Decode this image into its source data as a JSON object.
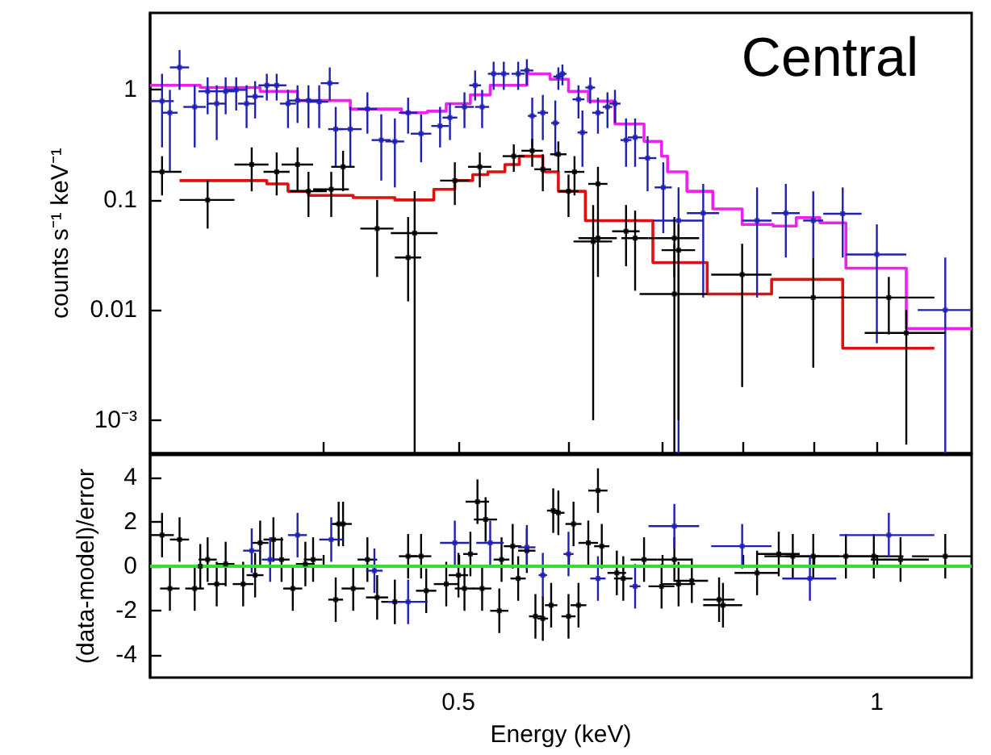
{
  "chart_data": [
    {
      "type": "scatter",
      "title": "Central",
      "ylabel": "counts s⁻¹ keV⁻¹",
      "log": "xy",
      "marker": "square",
      "tick_labels": "y",
      "xlim": [
        0.3,
        1.17
      ],
      "xticks": [
        {
          "value": 0.4,
          "label": null
        },
        {
          "value": 0.5,
          "label": null
        },
        {
          "value": 0.6,
          "label": null
        },
        {
          "value": 0.7,
          "label": null
        },
        {
          "value": 0.8,
          "label": null
        },
        {
          "value": 0.9,
          "label": null
        },
        {
          "value": 1,
          "label": null
        }
      ],
      "ylim": [
        0.0005,
        5
      ],
      "yticks": [
        {
          "value": 0.001,
          "label": "10⁻³"
        },
        0.01,
        0.1,
        1
      ],
      "series": [
        {
          "color": "#2020b0",
          "x": [
            0.306,
            0.315,
            0.31,
            0.323,
            0.33,
            0.335,
            0.34,
            0.346,
            0.352,
            0.357,
            0.364,
            0.37,
            0.377,
            0.383,
            0.39,
            0.397,
            0.404,
            0.408,
            0.418,
            0.43,
            0.44,
            0.45,
            0.46,
            0.47,
            0.485,
            0.493,
            0.505,
            0.514,
            0.52,
            0.53,
            0.539,
            0.552,
            0.56,
            0.565,
            0.575,
            0.59,
            0.594,
            0.587,
            0.61,
            0.614,
            0.622,
            0.63,
            0.64,
            0.648,
            0.66,
            0.67,
            0.684,
            0.702,
            0.72,
            0.75,
            0.82,
            0.86,
            0.9,
            0.945,
            1.0,
            1.12
          ],
          "values": [
            0.79,
            1.6,
            0.62,
            0.7,
            0.97,
            0.75,
            0.97,
            1.0,
            0.75,
            0.87,
            1.1,
            1.1,
            0.75,
            0.8,
            0.8,
            0.78,
            1.15,
            0.44,
            0.44,
            0.67,
            0.35,
            0.34,
            0.62,
            0.4,
            0.47,
            0.56,
            0.7,
            1.1,
            0.7,
            1.4,
            1.4,
            1.4,
            1.5,
            0.58,
            0.62,
            1.32,
            1.4,
            0.5,
            0.82,
            0.41,
            1.05,
            0.62,
            0.7,
            0.75,
            0.35,
            0.37,
            0.24,
            0.13,
            0.065,
            0.076,
            0.065,
            0.076,
            0.065,
            0.075,
            0.032,
            0.01
          ],
          "xerrors": [
            0.006,
            0.005,
            0.004,
            0.006,
            0.005,
            0.005,
            0.005,
            0.006,
            0.005,
            0.005,
            0.005,
            0.006,
            0.005,
            0.006,
            0.007,
            0.006,
            0.006,
            0.005,
            0.008,
            0.007,
            0.007,
            0.007,
            0.007,
            0.008,
            0.007,
            0.006,
            0.008,
            0.005,
            0.006,
            0.005,
            0.005,
            0.006,
            0.006,
            0.004,
            0.005,
            0.005,
            0.004,
            0.004,
            0.006,
            0.005,
            0.005,
            0.006,
            0.005,
            0.006,
            0.006,
            0.008,
            0.01,
            0.01,
            0.03,
            0.02,
            0.02,
            0.02,
            0.015,
            0.03,
            0.05,
            0.05
          ],
          "errors": [
            [
              0.3,
              1.4
            ],
            [
              1.0,
              2.3
            ],
            [
              0.18,
              1.0
            ],
            [
              0.3,
              1.1
            ],
            [
              0.6,
              1.3
            ],
            [
              0.35,
              1.1
            ],
            [
              0.6,
              1.3
            ],
            [
              0.65,
              1.3
            ],
            [
              0.45,
              1.1
            ],
            [
              0.55,
              1.2
            ],
            [
              0.8,
              1.4
            ],
            [
              0.8,
              1.4
            ],
            [
              0.45,
              1.0
            ],
            [
              0.5,
              1.1
            ],
            [
              0.45,
              1.1
            ],
            [
              0.45,
              1.1
            ],
            [
              0.8,
              1.6
            ],
            [
              0.2,
              0.7
            ],
            [
              0.2,
              0.7
            ],
            [
              0.4,
              0.95
            ],
            [
              0.15,
              0.6
            ],
            [
              0.13,
              0.55
            ],
            [
              0.4,
              0.85
            ],
            [
              0.22,
              0.6
            ],
            [
              0.3,
              0.7
            ],
            [
              0.35,
              0.75
            ],
            [
              0.45,
              0.95
            ],
            [
              0.8,
              1.5
            ],
            [
              0.45,
              1.0
            ],
            [
              1.0,
              1.8
            ],
            [
              1.0,
              1.8
            ],
            [
              1.0,
              1.8
            ],
            [
              1.1,
              1.9
            ],
            [
              0.3,
              0.85
            ],
            [
              0.35,
              0.9
            ],
            [
              1.0,
              1.6
            ],
            [
              1.1,
              1.7
            ],
            [
              0.25,
              0.8
            ],
            [
              0.55,
              1.1
            ],
            [
              0.2,
              0.65
            ],
            [
              0.75,
              1.3
            ],
            [
              0.4,
              0.85
            ],
            [
              0.45,
              0.95
            ],
            [
              0.5,
              1.0
            ],
            [
              0.2,
              0.55
            ],
            [
              0.2,
              0.55
            ],
            [
              0.12,
              0.38
            ],
            [
              0.05,
              0.22
            ],
            [
              0.0005,
              0.13
            ],
            [
              0.013,
              0.14
            ],
            [
              0.013,
              0.13
            ],
            [
              0.03,
              0.14
            ],
            [
              0.03,
              0.12
            ],
            [
              0.03,
              0.13
            ],
            [
              0.005,
              0.06
            ],
            [
              0.0005,
              0.03
            ]
          ]
        },
        {
          "color": "#000000",
          "x": [
            0.306,
            0.33,
            0.355,
            0.37,
            0.383,
            0.39,
            0.405,
            0.413,
            0.437,
            0.465,
            0.46,
            0.497,
            0.518,
            0.548,
            0.565,
            0.575,
            0.59,
            0.6,
            0.606,
            0.63,
            0.63,
            0.625,
            0.66,
            0.67,
            0.715,
            0.72,
            0.715,
            0.8,
            0.9,
            1.02,
            1.05
          ],
          "values": [
            0.18,
            0.1,
            0.21,
            0.18,
            0.21,
            0.12,
            0.125,
            0.2,
            0.055,
            0.05,
            0.03,
            0.15,
            0.2,
            0.25,
            0.28,
            0.19,
            0.26,
            0.12,
            0.18,
            0.14,
            0.045,
            0.042,
            0.052,
            0.045,
            0.045,
            0.035,
            0.014,
            0.021,
            0.013,
            0.013,
            0.0062
          ],
          "xerrors": [
            0.01,
            0.015,
            0.01,
            0.008,
            0.01,
            0.012,
            0.012,
            0.008,
            0.012,
            0.018,
            0.01,
            0.012,
            0.01,
            0.01,
            0.01,
            0.008,
            0.008,
            0.01,
            0.01,
            0.01,
            0.02,
            0.02,
            0.015,
            0.015,
            0.03,
            0.02,
            0.04,
            0.04,
            0.05,
            0.08,
            0.07
          ],
          "errors": [
            [
              0.11,
              0.25
            ],
            [
              0.055,
              0.15
            ],
            [
              0.12,
              0.3
            ],
            [
              0.11,
              0.27
            ],
            [
              0.12,
              0.3
            ],
            [
              0.07,
              0.18
            ],
            [
              0.07,
              0.18
            ],
            [
              0.12,
              0.28
            ],
            [
              0.02,
              0.1
            ],
            [
              0.0005,
              0.12
            ],
            [
              0.012,
              0.07
            ],
            [
              0.09,
              0.22
            ],
            [
              0.13,
              0.27
            ],
            [
              0.18,
              0.32
            ],
            [
              0.2,
              0.36
            ],
            [
              0.12,
              0.26
            ],
            [
              0.18,
              0.34
            ],
            [
              0.07,
              0.17
            ],
            [
              0.11,
              0.25
            ],
            [
              0.08,
              0.2
            ],
            [
              0.02,
              0.08
            ],
            [
              0.001,
              0.09
            ],
            [
              0.025,
              0.09
            ],
            [
              0.015,
              0.08
            ],
            [
              0.02,
              0.07
            ],
            [
              0.001,
              0.06
            ],
            [
              0.0005,
              0.04
            ],
            [
              0.002,
              0.04
            ],
            [
              0.003,
              0.03
            ],
            [
              0.006,
              0.02
            ],
            [
              0.0006,
              0.01
            ]
          ]
        },
        {
          "type": "step",
          "marker": "none",
          "color": "#dd1111",
          "x": [
            0.315,
            0.364,
            0.377,
            0.39,
            0.42,
            0.45,
            0.48,
            0.497,
            0.512,
            0.525,
            0.54,
            0.553,
            0.575,
            0.59,
            0.617,
            0.69,
            0.755,
            0.84,
            0.945,
            1.1
          ],
          "values": [
            0.15,
            0.14,
            0.12,
            0.11,
            0.105,
            0.1,
            0.125,
            0.15,
            0.17,
            0.18,
            0.21,
            0.25,
            0.18,
            0.12,
            0.065,
            0.027,
            0.014,
            0.019,
            0.0045,
            0.0045
          ]
        },
        {
          "type": "step",
          "marker": "none",
          "color": "#ee22ee",
          "x": [
            0.3,
            0.326,
            0.36,
            0.383,
            0.418,
            0.455,
            0.475,
            0.49,
            0.51,
            0.527,
            0.56,
            0.582,
            0.6,
            0.62,
            0.648,
            0.68,
            0.7,
            0.707,
            0.73,
            0.762,
            0.8,
            0.842,
            0.875,
            0.91,
            0.95,
            1.05,
            1.17
          ],
          "values": [
            1.1,
            1.05,
            0.97,
            0.8,
            0.67,
            0.62,
            0.64,
            0.75,
            0.9,
            1.1,
            1.4,
            1.25,
            0.97,
            0.79,
            0.49,
            0.34,
            0.25,
            0.18,
            0.12,
            0.083,
            0.06,
            0.058,
            0.069,
            0.062,
            0.024,
            0.0068,
            0.0068
          ]
        }
      ]
    },
    {
      "type": "scatter",
      "xlabel": "Energy (keV)",
      "ylabel": "(data-model)/error",
      "log": "x",
      "marker": "square",
      "xlim": [
        0.3,
        1.17
      ],
      "xticks": [
        {
          "value": 0.4,
          "label": null
        },
        0.5,
        {
          "value": 0.6,
          "label": null
        },
        {
          "value": 0.7,
          "label": null
        },
        {
          "value": 0.8,
          "label": null
        },
        {
          "value": 0.9,
          "label": null
        },
        1
      ],
      "ylim": [
        -5,
        5
      ],
      "yticks": [
        -4,
        -2,
        0,
        2,
        4
      ],
      "ref_lines": [
        {
          "axis": "y",
          "value": 0,
          "color": "#33dd33"
        }
      ],
      "series": [
        {
          "color": "#000000",
          "x": [
            0.306,
            0.31,
            0.315,
            0.323,
            0.326,
            0.33,
            0.335,
            0.34,
            0.35,
            0.357,
            0.36,
            0.368,
            0.373,
            0.38,
            0.388,
            0.393,
            0.408,
            0.41,
            0.413,
            0.42,
            0.43,
            0.437,
            0.45,
            0.46,
            0.47,
            0.474,
            0.49,
            0.5,
            0.505,
            0.516,
            0.523,
            0.51,
            0.52,
            0.535,
            0.537,
            0.547,
            0.552,
            0.56,
            0.568,
            0.575,
            0.583,
            0.585,
            0.59,
            0.6,
            0.605,
            0.61,
            0.62,
            0.63,
            0.634,
            0.65,
            0.657,
            0.68,
            0.7,
            0.715,
            0.72,
            0.736,
            0.77,
            0.775,
            0.82,
            0.85,
            0.87,
            0.9,
            0.95,
            0.995,
            1.04,
            1.12
          ],
          "values": [
            1.4,
            -1.0,
            1.2,
            -1.0,
            0,
            0.3,
            -0.8,
            0.1,
            -0.8,
            -0.4,
            1.05,
            1.2,
            0.3,
            -1.0,
            0.1,
            0.3,
            -1.5,
            1.9,
            1.9,
            -1.0,
            0.3,
            -1.4,
            -1.6,
            0.45,
            0.45,
            -1.1,
            -0.8,
            -0.4,
            -1.0,
            2.9,
            2.1,
            0.55,
            -1.0,
            -2.0,
            0.3,
            0.9,
            -0.55,
            0.7,
            -2.25,
            -2.35,
            -1.75,
            2.5,
            2.4,
            -2.25,
            1.9,
            -1.75,
            1.05,
            3.4,
            0.9,
            -0.3,
            -0.55,
            0.3,
            -0.9,
            0.3,
            -0.8,
            -0.65,
            -1.5,
            -1.75,
            -0.3,
            0.55,
            0.45,
            0.45,
            0.45,
            0.45,
            0.3,
            0.45
          ],
          "xerrors": [
            0.006,
            0.005,
            0.005,
            0.005,
            0.005,
            0.005,
            0.005,
            0.005,
            0.006,
            0.005,
            0.005,
            0.006,
            0.005,
            0.006,
            0.006,
            0.006,
            0.005,
            0.005,
            0.006,
            0.008,
            0.007,
            0.008,
            0.01,
            0.007,
            0.008,
            0.008,
            0.01,
            0.008,
            0.008,
            0.01,
            0.01,
            0.006,
            0.008,
            0.008,
            0.007,
            0.008,
            0.007,
            0.008,
            0.006,
            0.005,
            0.006,
            0.006,
            0.006,
            0.007,
            0.008,
            0.008,
            0.01,
            0.01,
            0.008,
            0.01,
            0.01,
            0.015,
            0.015,
            0.02,
            0.02,
            0.02,
            0.02,
            0.025,
            0.03,
            0.03,
            0.04,
            0.04,
            0.05,
            0.05,
            0.05,
            0.06
          ],
          "errors": [
            1,
            1,
            1,
            1,
            1,
            1,
            1,
            1,
            1,
            1,
            1,
            1,
            1,
            1,
            1,
            1,
            1,
            1,
            1,
            1,
            1,
            1,
            1,
            1,
            1,
            1,
            1,
            1,
            1,
            1,
            1,
            1,
            1,
            1,
            1,
            1,
            1,
            1,
            1,
            1,
            1,
            1,
            1,
            1,
            1,
            1,
            1,
            1,
            1,
            1,
            1,
            1,
            1,
            1,
            1,
            1,
            1,
            1,
            1,
            1,
            1,
            1,
            1,
            1,
            1,
            1
          ]
        },
        {
          "color": "#2020b0",
          "x": [
            0.355,
            0.366,
            0.383,
            0.405,
            0.435,
            0.46,
            0.497,
            0.527,
            0.56,
            0.575,
            0.6,
            0.63,
            0.67,
            0.715,
            0.8,
            0.895,
            1.02
          ],
          "values": [
            0.7,
            0.3,
            1.4,
            1.2,
            -0.2,
            -1.6,
            1.05,
            1.05,
            0.85,
            -0.4,
            0.55,
            -0.55,
            -0.9,
            1.8,
            0.9,
            -0.55,
            1.4
          ],
          "xerrors": [
            0.005,
            0.005,
            0.006,
            0.008,
            0.006,
            0.015,
            0.012,
            0.012,
            0.008,
            0.004,
            0.005,
            0.008,
            0.006,
            0.03,
            0.04,
            0.04,
            0.08
          ],
          "errors": [
            1,
            1,
            1,
            1,
            1,
            1,
            1,
            1,
            1,
            1,
            1,
            1,
            1,
            1,
            1,
            1,
            1
          ]
        }
      ]
    }
  ]
}
